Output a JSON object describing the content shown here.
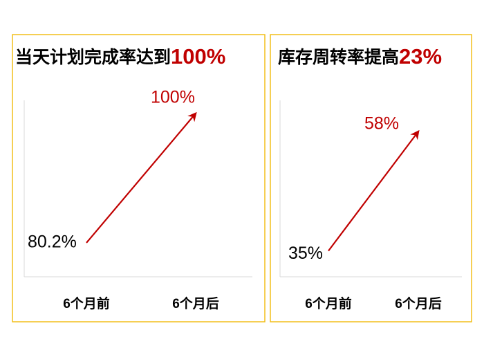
{
  "chart_data": [
    {
      "type": "line",
      "title": "当天计划完成率达到",
      "title_emphasis": "100%",
      "categories": [
        "6个月前",
        "6个月后"
      ],
      "values": [
        80.2,
        100
      ],
      "value_labels": [
        "80.2%",
        "100%"
      ],
      "color": "#c00000",
      "label_colors": [
        "#000000",
        "#c00000"
      ],
      "title_emphasis_color": "#c00000",
      "border_color": "#f2bf1a",
      "ylim": [
        75,
        102
      ]
    },
    {
      "type": "line",
      "title": "库存周转率提高",
      "title_emphasis": "23%",
      "categories": [
        "6个月前",
        "6个月后"
      ],
      "values": [
        35,
        58
      ],
      "value_labels": [
        "35%",
        "58%"
      ],
      "color": "#c00000",
      "label_colors": [
        "#000000",
        "#c00000"
      ],
      "title_emphasis_color": "#c00000",
      "border_color": "#f2bf1a",
      "ylim": [
        30,
        64
      ]
    }
  ]
}
